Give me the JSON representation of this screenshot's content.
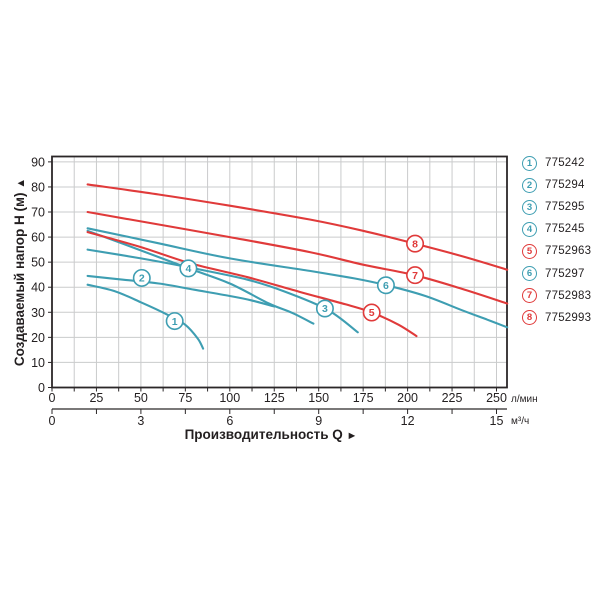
{
  "palette": {
    "teal": "#3E9EB2",
    "red": "#E03A3A",
    "grid": "#CACBCC",
    "axis": "#2B2728",
    "text": "#231F20",
    "background": "#FFFFFF"
  },
  "y_axis": {
    "title": "Создаваемый напор H (м)",
    "arrow": "▲",
    "ticks": [
      0,
      10,
      20,
      30,
      40,
      50,
      60,
      70,
      80,
      90
    ]
  },
  "x_axis": {
    "title": "Производительность Q",
    "arrow": "►",
    "unit_primary": "л/мин",
    "unit_secondary": "м³/ч",
    "ticks_lmin": [
      0,
      25,
      50,
      75,
      100,
      125,
      150,
      175,
      200,
      225,
      250
    ],
    "ticks_m3h": [
      0,
      3,
      6,
      9,
      12,
      15
    ]
  },
  "chart_data": {
    "type": "line",
    "title": "",
    "xlabel": "Производительность Q",
    "ylabel": "Создаваемый напор H (м)",
    "x_units": [
      "л/мин",
      "м³/ч"
    ],
    "xlim_lmin": [
      0,
      256
    ],
    "xlim_m3h": [
      0,
      15.36
    ],
    "ylim": [
      0,
      90
    ],
    "grid": "on",
    "minor_x_step_lmin": 12.5,
    "legend_position": "right-outside",
    "series": [
      {
        "id": "1",
        "code": "775242",
        "color": "teal",
        "points": [
          [
            20,
            41
          ],
          [
            35,
            38.5
          ],
          [
            50,
            34
          ],
          [
            65,
            29
          ],
          [
            75,
            25
          ],
          [
            82,
            19.5
          ],
          [
            85,
            15.5
          ]
        ],
        "badge_at": [
          69,
          26.5
        ]
      },
      {
        "id": "2",
        "code": "775294",
        "color": "teal",
        "points": [
          [
            20,
            44.5
          ],
          [
            40,
            43
          ],
          [
            60,
            41.5
          ],
          [
            80,
            39
          ],
          [
            100,
            36.5
          ],
          [
            112,
            34.8
          ],
          [
            125,
            32.3
          ]
        ],
        "badge_at": [
          50.5,
          43.7
        ]
      },
      {
        "id": "3",
        "code": "775295",
        "color": "teal",
        "points": [
          [
            20,
            55
          ],
          [
            50,
            51.5
          ],
          [
            80,
            47.5
          ],
          [
            110,
            43
          ],
          [
            130,
            38.5
          ],
          [
            155,
            31
          ],
          [
            172,
            22
          ]
        ],
        "badge_at": [
          153.5,
          31.5
        ]
      },
      {
        "id": "4",
        "code": "775245",
        "color": "teal",
        "points": [
          [
            20,
            62.5
          ],
          [
            45,
            56
          ],
          [
            77,
            47.5
          ],
          [
            100,
            41.5
          ],
          [
            122,
            33.5
          ],
          [
            135,
            29.8
          ],
          [
            147,
            25.5
          ]
        ],
        "badge_at": [
          76.7,
          47.5
        ]
      },
      {
        "id": "5",
        "code": "7752963",
        "color": "red",
        "points": [
          [
            20,
            62
          ],
          [
            50,
            56
          ],
          [
            78,
            49.5
          ],
          [
            110,
            44
          ],
          [
            140,
            38
          ],
          [
            165,
            33.2
          ],
          [
            180,
            29.9
          ],
          [
            195,
            25
          ],
          [
            205,
            20.5
          ]
        ],
        "badge_at": [
          179.8,
          29.9
        ]
      },
      {
        "id": "6",
        "code": "775297",
        "color": "teal",
        "points": [
          [
            20,
            63.5
          ],
          [
            60,
            57.5
          ],
          [
            100,
            51.5
          ],
          [
            145,
            46.5
          ],
          [
            170,
            43.5
          ],
          [
            188,
            40.8
          ],
          [
            210,
            36.5
          ],
          [
            230,
            31
          ],
          [
            245,
            27
          ],
          [
            256,
            24
          ]
        ],
        "badge_at": [
          187.8,
          40.8
        ]
      },
      {
        "id": "7",
        "code": "7752983",
        "color": "red",
        "points": [
          [
            20,
            70
          ],
          [
            60,
            65
          ],
          [
            100,
            60
          ],
          [
            145,
            54
          ],
          [
            175,
            49
          ],
          [
            204,
            44.8
          ],
          [
            230,
            39.5
          ],
          [
            256,
            33.5
          ]
        ],
        "badge_at": [
          204.2,
          44.8
        ]
      },
      {
        "id": "8",
        "code": "7752993",
        "color": "red",
        "points": [
          [
            20,
            81
          ],
          [
            60,
            77
          ],
          [
            100,
            72.5
          ],
          [
            145,
            67
          ],
          [
            175,
            62.5
          ],
          [
            204,
            57.4
          ],
          [
            230,
            52.5
          ],
          [
            256,
            47
          ]
        ],
        "badge_at": [
          204.2,
          57.4
        ]
      }
    ]
  }
}
